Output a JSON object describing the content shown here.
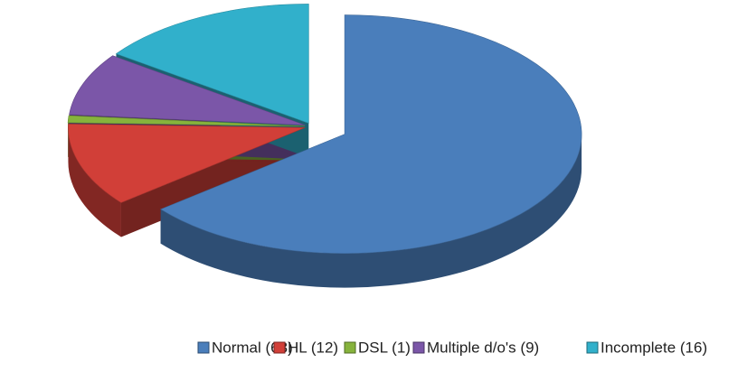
{
  "chart_data": {
    "type": "pie",
    "categories": [
      "Normal (68)",
      "HL (12)",
      "DSL (1)",
      "Multiple d/o's (9)",
      "Incomplete (16)"
    ],
    "values": [
      68,
      12,
      1,
      9,
      16
    ],
    "colors": [
      "#4a7ebb",
      "#d13f38",
      "#86b33c",
      "#7b56a8",
      "#31b0cb"
    ],
    "legend": "bottom"
  }
}
